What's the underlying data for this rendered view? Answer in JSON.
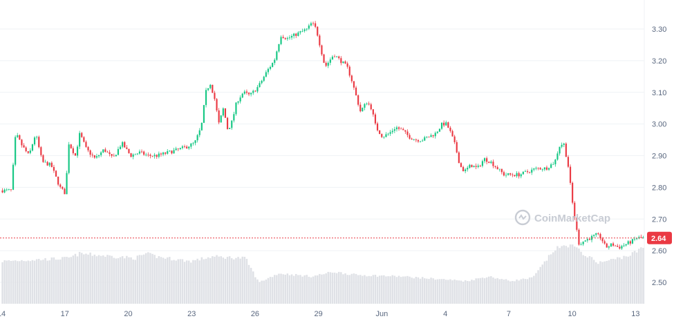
{
  "watermark": "CoinMarketCap",
  "current_price_label": "2.64",
  "colors": {
    "up": "#16c784",
    "down": "#ea3943",
    "volume": "#dfe1e6",
    "grid": "#eff2f5",
    "price_line": "#ea3943",
    "label_bg": "#ea3943"
  },
  "chart_data": {
    "type": "candlestick",
    "title": "",
    "xlabel": "",
    "ylabel": "",
    "ylim": [
      2.5,
      3.35
    ],
    "y_ticks": [
      "2.50",
      "2.60",
      "2.70",
      "2.80",
      "2.90",
      "3.00",
      "3.10",
      "3.20",
      "3.30"
    ],
    "x_tick_labels": [
      "14",
      "17",
      "20",
      "23",
      "26",
      "29",
      "Jun",
      "4",
      "7",
      "10",
      "13"
    ],
    "current_price": 2.64,
    "grid": "horizontal",
    "series": [
      {
        "kind": "close",
        "points": [
          [
            0,
            2.79
          ],
          [
            0.4,
            2.79
          ],
          [
            0.6,
            2.97
          ],
          [
            0.9,
            2.93
          ],
          [
            1.2,
            2.9
          ],
          [
            1.5,
            2.97
          ],
          [
            1.8,
            2.88
          ],
          [
            2.2,
            2.87
          ],
          [
            2.6,
            2.8
          ],
          [
            2.85,
            2.78
          ],
          [
            3.0,
            2.94
          ],
          [
            3.3,
            2.9
          ],
          [
            3.5,
            2.97
          ],
          [
            3.8,
            2.92
          ],
          [
            4.2,
            2.89
          ],
          [
            4.6,
            2.92
          ],
          [
            5.0,
            2.89
          ],
          [
            5.4,
            2.94
          ],
          [
            5.8,
            2.9
          ],
          [
            6.2,
            2.91
          ],
          [
            6.6,
            2.9
          ],
          [
            7.0,
            2.9
          ],
          [
            7.5,
            2.91
          ],
          [
            8.0,
            2.92
          ],
          [
            8.4,
            2.93
          ],
          [
            8.7,
            2.94
          ],
          [
            9.0,
            2.99
          ],
          [
            9.2,
            3.1
          ],
          [
            9.4,
            3.13
          ],
          [
            9.6,
            3.08
          ],
          [
            9.8,
            3.0
          ],
          [
            10.0,
            3.05
          ],
          [
            10.2,
            2.98
          ],
          [
            10.4,
            3.01
          ],
          [
            10.6,
            3.07
          ],
          [
            10.9,
            3.1
          ],
          [
            11.2,
            3.09
          ],
          [
            11.6,
            3.12
          ],
          [
            12.0,
            3.17
          ],
          [
            12.3,
            3.2
          ],
          [
            12.6,
            3.28
          ],
          [
            12.9,
            3.27
          ],
          [
            13.2,
            3.28
          ],
          [
            13.5,
            3.29
          ],
          [
            13.8,
            3.3
          ],
          [
            14.0,
            3.32
          ],
          [
            14.2,
            3.3
          ],
          [
            14.4,
            3.24
          ],
          [
            14.6,
            3.18
          ],
          [
            14.8,
            3.2
          ],
          [
            15.0,
            3.22
          ],
          [
            15.3,
            3.2
          ],
          [
            15.6,
            3.18
          ],
          [
            15.8,
            3.14
          ],
          [
            16.0,
            3.09
          ],
          [
            16.2,
            3.04
          ],
          [
            16.5,
            3.07
          ],
          [
            16.7,
            3.05
          ],
          [
            16.9,
            2.99
          ],
          [
            17.2,
            2.96
          ],
          [
            17.5,
            2.97
          ],
          [
            17.8,
            2.99
          ],
          [
            18.1,
            2.98
          ],
          [
            18.4,
            2.96
          ],
          [
            18.7,
            2.95
          ],
          [
            19.0,
            2.95
          ],
          [
            19.3,
            2.96
          ],
          [
            19.6,
            2.97
          ],
          [
            19.9,
            3.0
          ],
          [
            20.1,
            3.0
          ],
          [
            20.3,
            2.97
          ],
          [
            20.5,
            2.93
          ],
          [
            20.7,
            2.87
          ],
          [
            20.9,
            2.85
          ],
          [
            21.2,
            2.87
          ],
          [
            21.5,
            2.86
          ],
          [
            21.8,
            2.89
          ],
          [
            22.1,
            2.88
          ],
          [
            22.4,
            2.86
          ],
          [
            22.7,
            2.84
          ],
          [
            23.0,
            2.84
          ],
          [
            23.4,
            2.84
          ],
          [
            23.8,
            2.85
          ],
          [
            24.2,
            2.86
          ],
          [
            24.6,
            2.86
          ],
          [
            25.0,
            2.88
          ],
          [
            25.2,
            2.93
          ],
          [
            25.4,
            2.94
          ],
          [
            25.6,
            2.87
          ],
          [
            25.8,
            2.75
          ],
          [
            26.0,
            2.66
          ],
          [
            26.1,
            2.62
          ],
          [
            26.3,
            2.63
          ],
          [
            26.6,
            2.64
          ],
          [
            26.9,
            2.65
          ],
          [
            27.1,
            2.64
          ],
          [
            27.3,
            2.61
          ],
          [
            27.6,
            2.62
          ],
          [
            27.9,
            2.61
          ],
          [
            28.2,
            2.62
          ],
          [
            28.5,
            2.63
          ],
          [
            28.7,
            2.64
          ],
          [
            29.0,
            2.64
          ]
        ]
      },
      {
        "kind": "volume",
        "note": "relative bar heights, same x positions",
        "points": [
          [
            0,
            0.28
          ],
          [
            3,
            0.3
          ],
          [
            3.5,
            0.33
          ],
          [
            6,
            0.3
          ],
          [
            6.5,
            0.33
          ],
          [
            7,
            0.31
          ],
          [
            8.5,
            0.28
          ],
          [
            9.5,
            0.31
          ],
          [
            11,
            0.3
          ],
          [
            11.6,
            0.14
          ],
          [
            12.5,
            0.2
          ],
          [
            14,
            0.18
          ],
          [
            15,
            0.21
          ],
          [
            16,
            0.19
          ],
          [
            18,
            0.18
          ],
          [
            21,
            0.15
          ],
          [
            22,
            0.18
          ],
          [
            23,
            0.15
          ],
          [
            24,
            0.17
          ],
          [
            25,
            0.36
          ],
          [
            25.7,
            0.39
          ],
          [
            26.5,
            0.31
          ],
          [
            27,
            0.27
          ],
          [
            27.6,
            0.29
          ],
          [
            28.4,
            0.32
          ],
          [
            29,
            0.37
          ]
        ]
      }
    ]
  }
}
